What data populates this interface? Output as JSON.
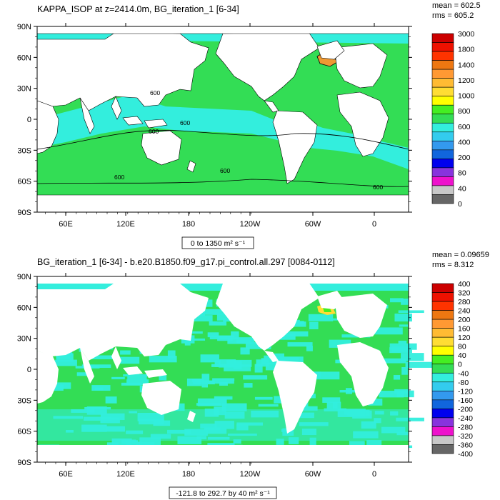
{
  "palette": {
    "ocean_green": "#33dd55",
    "ocean_cyan": "#33eedd",
    "land": "#ffffff",
    "scale_colors": [
      "#cc0000",
      "#ee1100",
      "#ff3300",
      "#ee7711",
      "#ff9933",
      "#ffbb33",
      "#ffdd33",
      "#ffff00",
      "#44ee22",
      "#33dd55",
      "#33eedd",
      "#33ccee",
      "#3399ee",
      "#1166dd",
      "#0000ee",
      "#8833dd",
      "#ee11cc",
      "#c8c8c8",
      "#666666"
    ]
  },
  "chart_data": [
    {
      "type": "map",
      "title": "KAPPA_ISOP at z=2414.0m, BG_iteration_1 [6-34]",
      "stats": {
        "mean": "mean = 602.5",
        "rms": "rms = 605.2"
      },
      "range_label": "0 to 1350 m² s⁻¹",
      "x_ticks": [
        "60E",
        "120E",
        "180",
        "120W",
        "60W",
        "0"
      ],
      "y_ticks": [
        "90N",
        "60N",
        "30N",
        "0",
        "30S",
        "60S",
        "90S"
      ],
      "colorbar_labels": [
        "3000",
        "1800",
        "1400",
        "1200",
        "1000",
        "800",
        "600",
        "400",
        "200",
        "80",
        "40",
        "0"
      ],
      "contour_labels": [
        "600",
        "600",
        "600",
        "600",
        "600",
        "600"
      ],
      "regions": [
        {
          "name": "pacific",
          "value": 600
        },
        {
          "name": "atlantic",
          "value": 600
        },
        {
          "name": "indian",
          "value": 600
        },
        {
          "name": "southern",
          "value": 600
        },
        {
          "name": "equatorial-band",
          "value": 500
        },
        {
          "name": "greenland-sea",
          "value": 1300
        }
      ]
    },
    {
      "type": "map",
      "title": "BG_iteration_1 [6-34] - b.e20.B1850.f09_g17.pi_control.all.297 [0084-0112]",
      "stats": {
        "mean": "mean = 0.09659",
        "rms": "rms = 8.312"
      },
      "range_label": "-121.8 to 292.7 by 40 m² s⁻¹",
      "x_ticks": [
        "60E",
        "120E",
        "180",
        "120W",
        "60W",
        "0"
      ],
      "y_ticks": [
        "90N",
        "60N",
        "30N",
        "0",
        "30S",
        "60S",
        "90S"
      ],
      "colorbar_labels": [
        "400",
        "320",
        "280",
        "240",
        "200",
        "160",
        "120",
        "80",
        "40",
        "0",
        "-40",
        "-80",
        "-120",
        "-160",
        "-200",
        "-240",
        "-280",
        "-320",
        "-360",
        "-400"
      ],
      "regions": [
        {
          "name": "pacific",
          "value": 0
        },
        {
          "name": "atlantic",
          "value": 0
        },
        {
          "name": "indian",
          "value": 0
        },
        {
          "name": "southern",
          "value": -40
        },
        {
          "name": "greenland-sea",
          "value": 160
        }
      ]
    }
  ]
}
